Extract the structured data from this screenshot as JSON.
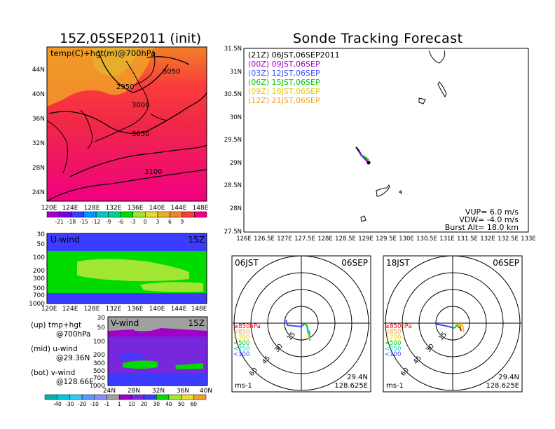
{
  "left": {
    "title": "15Z,05SEP2011 (init)",
    "map": {
      "label": "temp(C)+hgt(m)@700hPa",
      "lat_ticks": [
        "44N",
        "40N",
        "36N",
        "32N",
        "28N",
        "24N"
      ],
      "lon_ticks": [
        "120E",
        "124E",
        "128E",
        "132E",
        "136E",
        "140E",
        "144E",
        "148E"
      ],
      "contours": [
        {
          "label": "3050"
        },
        {
          "label": "2950"
        },
        {
          "label": "3000"
        },
        {
          "label": "3050"
        },
        {
          "label": "3100"
        }
      ],
      "colorbar": {
        "labels": [
          "-21",
          "-18",
          "-15",
          "-12",
          "-9",
          "-6",
          "-3",
          "0",
          "3",
          "6",
          "9"
        ],
        "colors": [
          "#a000c8",
          "#7800dc",
          "#3c3cff",
          "#0096ff",
          "#00c8c8",
          "#00d28c",
          "#00dc00",
          "#a0e632",
          "#e6dc32",
          "#e6af2d",
          "#f08228",
          "#fa3c3c",
          "#f00082"
        ]
      }
    },
    "u_wind": {
      "label": "U-wind",
      "time": "15Z",
      "p_ticks": [
        "30",
        "50",
        "100",
        "200",
        "300",
        "500",
        "700",
        "1000"
      ],
      "lon_ticks": [
        "120E",
        "124E",
        "128E",
        "132E",
        "136E",
        "140E",
        "144E",
        "148E"
      ]
    },
    "v_wind": {
      "label": "V-wind",
      "time": "15Z",
      "p_ticks": [
        "30",
        "50",
        "100",
        "200",
        "300",
        "500",
        "700",
        "1000"
      ],
      "lat_ticks": [
        "24N",
        "28N",
        "32N",
        "36N",
        "40N"
      ]
    },
    "legend_notes": [
      {
        "line1": "(up) tmp+hgt",
        "line2": "@700hPa"
      },
      {
        "line1": "(mid) u-wind",
        "line2": "@29.36N"
      },
      {
        "line1": "(bot) v-wind",
        "line2": "@128.66E"
      }
    ],
    "wind_colorbar": {
      "labels": [
        "-40",
        "-30",
        "-20",
        "-10",
        "-1",
        "1",
        "10",
        "20",
        "30",
        "40",
        "50",
        "60"
      ],
      "colors": [
        "#00b4b4",
        "#00c8dc",
        "#32c8ff",
        "#5a96ff",
        "#8c8cff",
        "#a0a0a0",
        "#a000c8",
        "#7828dc",
        "#3c3cff",
        "#00dc00",
        "#a0e632",
        "#e6dc32",
        "#f0a028"
      ]
    }
  },
  "right": {
    "title": "Sonde Tracking Forecast",
    "track_map": {
      "lat_ticks": [
        "31.5N",
        "31N",
        "30.5N",
        "30N",
        "29.5N",
        "29N",
        "28.5N",
        "28N",
        "27.5N"
      ],
      "lon_ticks": [
        "126E",
        "126.5E",
        "127E",
        "127.5E",
        "128E",
        "128.5E",
        "129E",
        "129.5E",
        "130E",
        "130.5E",
        "131E",
        "131.5E",
        "132E",
        "132.5E",
        "133E"
      ],
      "legend": [
        {
          "text": "(21Z)  06JST,06SEP2011",
          "color": "#000000"
        },
        {
          "text": "(00Z)  09JST,06SEP",
          "color": "#a000c8"
        },
        {
          "text": "(03Z)  12JST,06SEP",
          "color": "#3c50ff"
        },
        {
          "text": "(06Z)  15JST,06SEP",
          "color": "#00c800"
        },
        {
          "text": "(09Z)  18JST,06SEP",
          "color": "#e6c800"
        },
        {
          "text": "(12Z)  21JST,06SEP",
          "color": "#f0a028"
        }
      ],
      "params": [
        "VUP=  6.0  m/s",
        "VDW=  -4.0  m/s",
        "Burst Alt=  18.0  km"
      ]
    },
    "polars": [
      {
        "time": "06JST",
        "date": "06SEP",
        "rings": [
          "15",
          "30",
          "45",
          "60"
        ],
        "unit": "ms-1",
        "lat": "29.4N",
        "lon": "128.625E"
      },
      {
        "time": "18JST",
        "date": "06SEP",
        "rings": [
          "15",
          "30",
          "45",
          "60"
        ],
        "unit": "ms-1",
        "lat": "29.4N",
        "lon": "128.625E"
      }
    ],
    "polar_legend": [
      {
        "text": "≥850hPa",
        "color": "#e60000"
      },
      {
        "text": "<850",
        "color": "#f0a028"
      },
      {
        "text": "<700",
        "color": "#e6c800"
      },
      {
        "text": "<500",
        "color": "#00c800"
      },
      {
        "text": "<250",
        "color": "#00c8dc"
      },
      {
        "text": "<100",
        "color": "#3c50ff"
      }
    ]
  }
}
